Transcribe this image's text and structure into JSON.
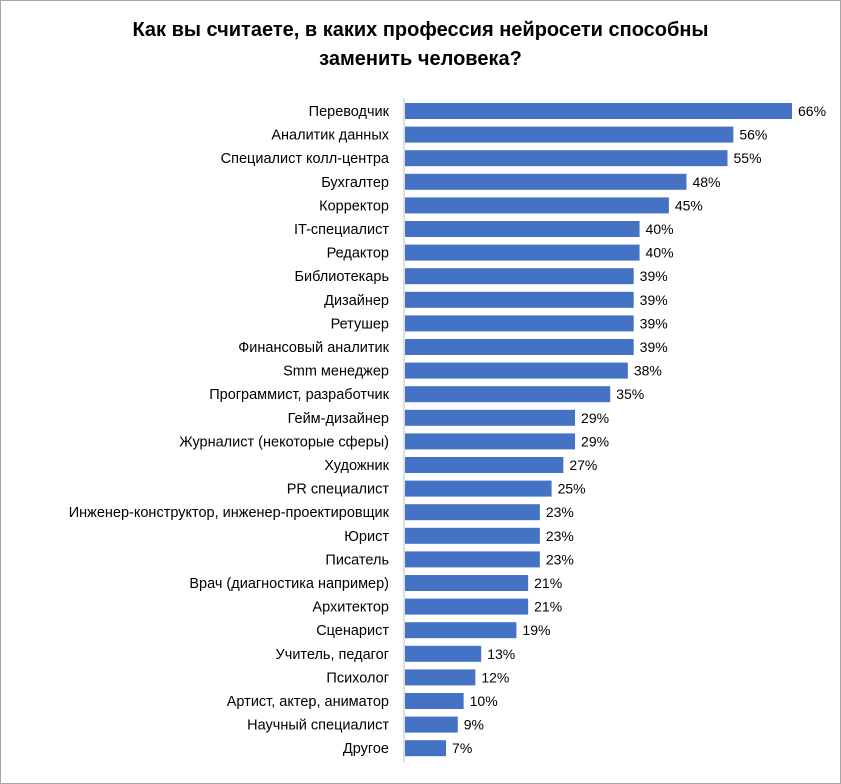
{
  "chart_data": {
    "type": "bar",
    "orientation": "horizontal",
    "title_lines": [
      "Как вы считаете, в каких профессия  нейросети способны",
      "заменить человека?"
    ],
    "categories": [
      "Переводчик",
      "Аналитик данных",
      "Специалист колл-центра",
      "Бухгалтер",
      "Корректор",
      "IT-специалист",
      "Редактор",
      "Библиотекарь",
      "Дизайнер",
      "Ретушер",
      "Финансовый аналитик",
      "Smm менеджер",
      "Программист, разработчик",
      "Гейм-дизайнер",
      "Журналист (некоторые сферы)",
      "Художник",
      "PR специалист",
      "Инженер-конструктор, инженер-проектировщик",
      "Юрист",
      "Писатель",
      "Врач (диагностика например)",
      "Архитектор",
      "Сценарист",
      "Учитель, педагог",
      "Психолог",
      "Артист, актер, аниматор",
      "Научный специалист",
      "Другое"
    ],
    "values": [
      66,
      56,
      55,
      48,
      45,
      40,
      40,
      39,
      39,
      39,
      39,
      38,
      35,
      29,
      29,
      27,
      25,
      23,
      23,
      23,
      21,
      21,
      19,
      13,
      12,
      10,
      9,
      7
    ],
    "value_labels": [
      "66%",
      "56%",
      "55%",
      "48%",
      "45%",
      "40%",
      "40%",
      "39%",
      "39%",
      "39%",
      "39%",
      "38%",
      "35%",
      "29%",
      "29%",
      "27%",
      "25%",
      "23%",
      "23%",
      "23%",
      "21%",
      "21%",
      "19%",
      "13%",
      "12%",
      "10%",
      "9%",
      "7%"
    ],
    "unit": "%",
    "bar_color": "#4472c4",
    "xlim": [
      0,
      66
    ],
    "grid": false,
    "legend": "none"
  }
}
